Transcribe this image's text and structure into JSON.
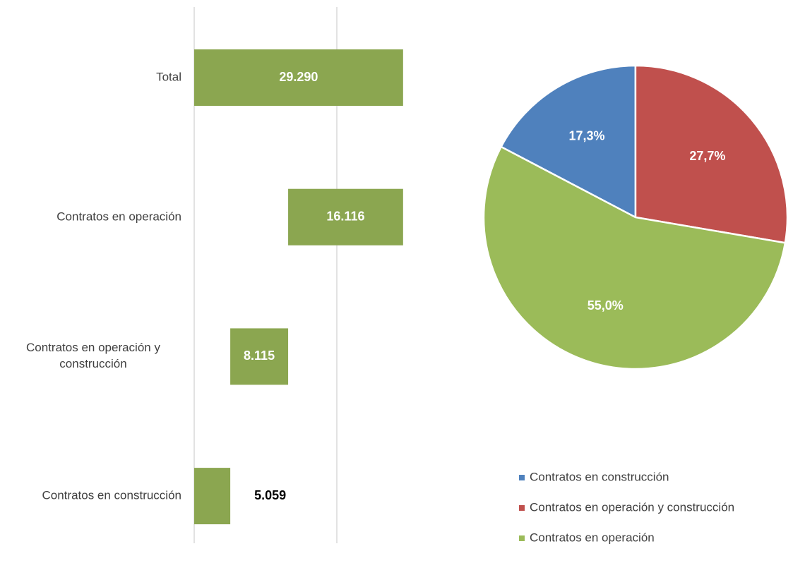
{
  "chart_data": [
    {
      "type": "waterfall",
      "categories": [
        "Total",
        "Contratos en operación",
        "Contratos en operación y construcción",
        "Contratos en construcción"
      ],
      "values": [
        29290,
        16116,
        8115,
        5059
      ],
      "value_labels": [
        "29.290",
        "16.116",
        "8.115",
        "5.059"
      ],
      "is_total": [
        true,
        false,
        false,
        false
      ],
      "color": "#8ba650",
      "xlim": [
        0,
        40000
      ],
      "gridlines": [
        0,
        20000
      ]
    },
    {
      "type": "pie",
      "series": [
        {
          "name": "Contratos en construcción",
          "color": "#4f81bd",
          "value": 17.3,
          "value_label": "17,3%"
        },
        {
          "name": "Contratos en operación y construcción",
          "color": "#c0504d",
          "value": 27.7,
          "value_label": "27,7%"
        },
        {
          "name": "Contratos en operación",
          "color": "#9bbb59",
          "value": 55.0,
          "value_label": "55,0%"
        }
      ],
      "start_angle": 297.7,
      "legend": "bottom-right"
    }
  ]
}
